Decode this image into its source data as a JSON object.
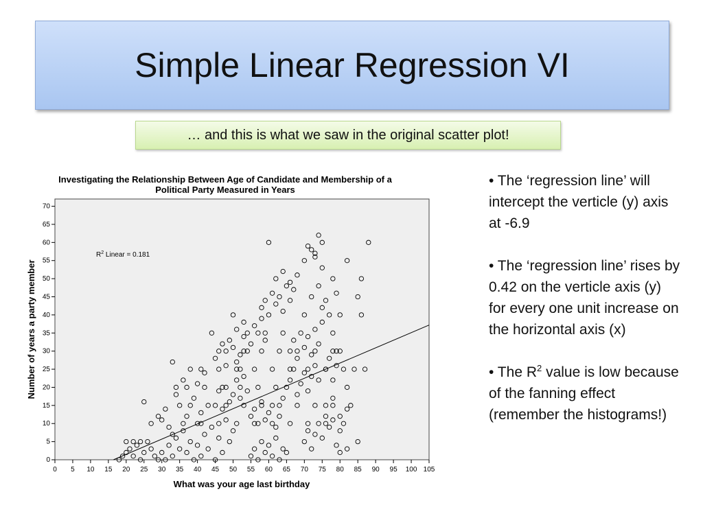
{
  "slide": {
    "title": "Simple Linear Regression VI",
    "callout": "… and this is what we saw in the original scatter plot!"
  },
  "bullets": [
    {
      "text": "• The ‘regression line’ will intercept the verticle (y) axis at -6.9"
    },
    {
      "text": "• The ‘regression line’ rises by 0.42 on the verticle axis (y) for every one unit increase on the horizontal axis (x)"
    },
    {
      "pre": "• The R",
      "sup": "2",
      "post": " value is low because of the fanning effect (remember the histograms!)"
    }
  ],
  "chart_data": {
    "type": "scatter",
    "title": "Investigating the Relationship Between Age of Candidate and Membership of a Political Party Measured in Years",
    "title_line1": "Investigating the Relationship Between Age of Candidate and Membership of a",
    "title_line2": "Political Party Measured in Years",
    "xlabel": "What was your age last birthday",
    "ylabel": "Number of years a party member",
    "xlim": [
      0,
      105
    ],
    "ylim": [
      0,
      72
    ],
    "xticks": [
      0,
      5,
      10,
      15,
      20,
      25,
      30,
      35,
      40,
      45,
      50,
      55,
      60,
      65,
      70,
      75,
      80,
      85,
      90,
      95,
      100,
      105
    ],
    "yticks": [
      0,
      5,
      10,
      15,
      20,
      25,
      30,
      35,
      40,
      45,
      50,
      55,
      60,
      65,
      70
    ],
    "r2_label_pre": "R",
    "r2_label_sup": "2",
    "r2_label_post": " Linear = 0.181",
    "regression": {
      "intercept": -6.9,
      "slope": 0.42
    },
    "marker_color": "#000000",
    "points": [
      [
        18,
        0
      ],
      [
        19,
        1
      ],
      [
        20,
        2
      ],
      [
        21,
        3
      ],
      [
        22,
        1
      ],
      [
        23,
        4
      ],
      [
        24,
        0
      ],
      [
        25,
        2
      ],
      [
        26,
        5
      ],
      [
        27,
        3
      ],
      [
        28,
        1
      ],
      [
        29,
        0
      ],
      [
        20,
        5
      ],
      [
        22,
        5
      ],
      [
        24,
        5
      ],
      [
        25,
        16
      ],
      [
        27,
        10
      ],
      [
        29,
        12
      ],
      [
        30,
        11
      ],
      [
        31,
        14
      ],
      [
        32,
        9
      ],
      [
        33,
        7
      ],
      [
        34,
        18
      ],
      [
        30,
        2
      ],
      [
        31,
        0
      ],
      [
        32,
        4
      ],
      [
        33,
        1
      ],
      [
        34,
        6
      ],
      [
        35,
        3
      ],
      [
        36,
        8
      ],
      [
        37,
        2
      ],
      [
        38,
        5
      ],
      [
        39,
        0
      ],
      [
        40,
        10
      ],
      [
        33,
        27
      ],
      [
        34,
        20
      ],
      [
        35,
        15
      ],
      [
        36,
        22
      ],
      [
        37,
        12
      ],
      [
        38,
        25
      ],
      [
        39,
        17
      ],
      [
        40,
        21
      ],
      [
        41,
        13
      ],
      [
        42,
        24
      ],
      [
        40,
        4
      ],
      [
        41,
        1
      ],
      [
        42,
        7
      ],
      [
        43,
        3
      ],
      [
        44,
        9
      ],
      [
        45,
        0
      ],
      [
        46,
        6
      ],
      [
        47,
        2
      ],
      [
        48,
        11
      ],
      [
        49,
        5
      ],
      [
        50,
        8
      ],
      [
        44,
        35
      ],
      [
        45,
        28
      ],
      [
        46,
        30
      ],
      [
        47,
        32
      ],
      [
        48,
        26
      ],
      [
        49,
        33
      ],
      [
        50,
        31
      ],
      [
        51,
        36
      ],
      [
        52,
        29
      ],
      [
        53,
        34
      ],
      [
        45,
        15
      ],
      [
        46,
        19
      ],
      [
        47,
        14
      ],
      [
        48,
        20
      ],
      [
        49,
        16
      ],
      [
        50,
        18
      ],
      [
        51,
        22
      ],
      [
        52,
        17
      ],
      [
        53,
        23
      ],
      [
        54,
        19
      ],
      [
        50,
        40
      ],
      [
        51,
        27
      ],
      [
        52,
        25
      ],
      [
        53,
        38
      ],
      [
        54,
        30
      ],
      [
        55,
        32
      ],
      [
        56,
        37
      ],
      [
        57,
        35
      ],
      [
        58,
        39
      ],
      [
        59,
        33
      ],
      [
        55,
        1
      ],
      [
        56,
        3
      ],
      [
        57,
        0
      ],
      [
        58,
        5
      ],
      [
        59,
        2
      ],
      [
        60,
        4
      ],
      [
        61,
        1
      ],
      [
        62,
        6
      ],
      [
        63,
        0
      ],
      [
        64,
        3
      ],
      [
        65,
        2
      ],
      [
        55,
        12
      ],
      [
        56,
        14
      ],
      [
        57,
        10
      ],
      [
        58,
        16
      ],
      [
        59,
        11
      ],
      [
        60,
        13
      ],
      [
        61,
        15
      ],
      [
        62,
        9
      ],
      [
        63,
        12
      ],
      [
        64,
        17
      ],
      [
        58,
        42
      ],
      [
        59,
        44
      ],
      [
        60,
        40
      ],
      [
        61,
        46
      ],
      [
        62,
        43
      ],
      [
        63,
        45
      ],
      [
        64,
        41
      ],
      [
        65,
        48
      ],
      [
        66,
        44
      ],
      [
        67,
        47
      ],
      [
        60,
        60
      ],
      [
        62,
        50
      ],
      [
        64,
        52
      ],
      [
        66,
        49
      ],
      [
        68,
        51
      ],
      [
        70,
        55
      ],
      [
        72,
        58
      ],
      [
        73,
        57
      ],
      [
        74,
        62
      ],
      [
        75,
        60
      ],
      [
        65,
        20
      ],
      [
        66,
        22
      ],
      [
        67,
        25
      ],
      [
        68,
        18
      ],
      [
        69,
        21
      ],
      [
        70,
        24
      ],
      [
        71,
        19
      ],
      [
        72,
        23
      ],
      [
        73,
        26
      ],
      [
        74,
        22
      ],
      [
        66,
        30
      ],
      [
        67,
        33
      ],
      [
        68,
        28
      ],
      [
        69,
        35
      ],
      [
        70,
        31
      ],
      [
        71,
        34
      ],
      [
        72,
        29
      ],
      [
        73,
        36
      ],
      [
        74,
        32
      ],
      [
        75,
        38
      ],
      [
        70,
        5
      ],
      [
        71,
        8
      ],
      [
        72,
        3
      ],
      [
        73,
        7
      ],
      [
        74,
        10
      ],
      [
        75,
        6
      ],
      [
        76,
        12
      ],
      [
        77,
        9
      ],
      [
        78,
        11
      ],
      [
        79,
        4
      ],
      [
        80,
        8
      ],
      [
        70,
        40
      ],
      [
        72,
        45
      ],
      [
        74,
        48
      ],
      [
        75,
        42
      ],
      [
        76,
        44
      ],
      [
        77,
        40
      ],
      [
        78,
        50
      ],
      [
        79,
        46
      ],
      [
        80,
        40
      ],
      [
        82,
        55
      ],
      [
        76,
        25
      ],
      [
        77,
        28
      ],
      [
        78,
        22
      ],
      [
        79,
        26
      ],
      [
        80,
        30
      ],
      [
        82,
        20
      ],
      [
        84,
        25
      ],
      [
        85,
        45
      ],
      [
        86,
        40
      ],
      [
        86,
        50
      ],
      [
        76,
        15
      ],
      [
        78,
        17
      ],
      [
        80,
        12
      ],
      [
        82,
        14
      ],
      [
        78,
        35
      ],
      [
        79,
        30
      ],
      [
        75,
        53
      ],
      [
        73,
        56
      ],
      [
        71,
        59
      ],
      [
        88,
        60
      ],
      [
        87,
        25
      ],
      [
        85,
        5
      ],
      [
        82,
        3
      ],
      [
        80,
        2
      ],
      [
        62,
        20
      ],
      [
        57,
        20
      ],
      [
        52,
        20
      ],
      [
        47,
        20
      ],
      [
        42,
        20
      ],
      [
        37,
        20
      ],
      [
        36,
        10
      ],
      [
        41,
        10
      ],
      [
        46,
        10
      ],
      [
        51,
        10
      ],
      [
        56,
        10
      ],
      [
        61,
        10
      ],
      [
        66,
        10
      ],
      [
        71,
        10
      ],
      [
        76,
        10
      ],
      [
        81,
        10
      ],
      [
        38,
        15
      ],
      [
        43,
        15
      ],
      [
        48,
        15
      ],
      [
        53,
        15
      ],
      [
        58,
        15
      ],
      [
        63,
        15
      ],
      [
        68,
        15
      ],
      [
        73,
        15
      ],
      [
        78,
        15
      ],
      [
        83,
        15
      ],
      [
        41,
        25
      ],
      [
        46,
        25
      ],
      [
        51,
        25
      ],
      [
        56,
        25
      ],
      [
        61,
        25
      ],
      [
        66,
        25
      ],
      [
        71,
        25
      ],
      [
        76,
        25
      ],
      [
        81,
        25
      ],
      [
        48,
        30
      ],
      [
        53,
        30
      ],
      [
        58,
        30
      ],
      [
        63,
        30
      ],
      [
        68,
        30
      ],
      [
        73,
        30
      ],
      [
        78,
        30
      ],
      [
        54,
        35
      ],
      [
        59,
        35
      ],
      [
        64,
        35
      ]
    ]
  }
}
